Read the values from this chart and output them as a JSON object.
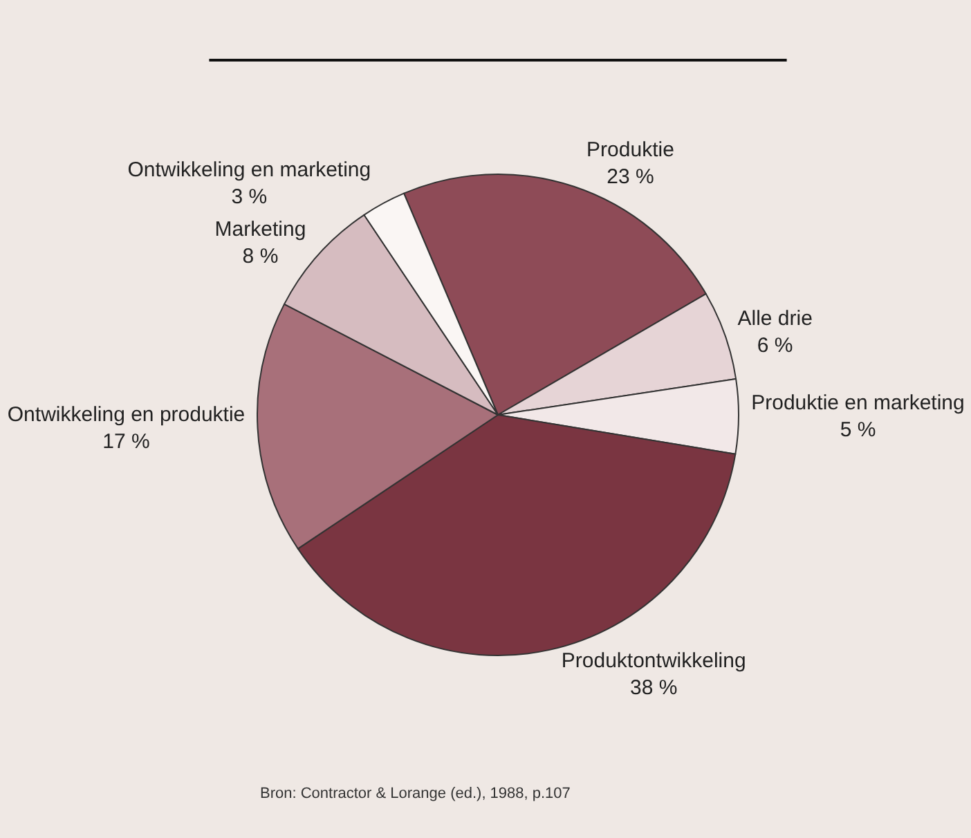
{
  "chart_data": {
    "type": "pie",
    "categories": [
      "Produktie",
      "Alle drie",
      "Produktie en marketing",
      "Produktontwikkeling",
      "Ontwikkeling en produktie",
      "Marketing",
      "Ontwikkeling en marketing"
    ],
    "values": [
      23,
      6,
      5,
      38,
      17,
      8,
      3
    ],
    "value_labels": [
      "23 %",
      "6 %",
      "5 %",
      "38 %",
      "17 %",
      "8 %",
      "3 %"
    ],
    "colors": [
      "#8e4b57",
      "#e6d4d6",
      "#f2e8e8",
      "#7a3541",
      "#a8707a",
      "#d6bcc0",
      "#faf6f4"
    ],
    "legend": false,
    "annotations": [
      "Bron: Contractor & Lorange (ed.), 1988, p.107"
    ]
  }
}
